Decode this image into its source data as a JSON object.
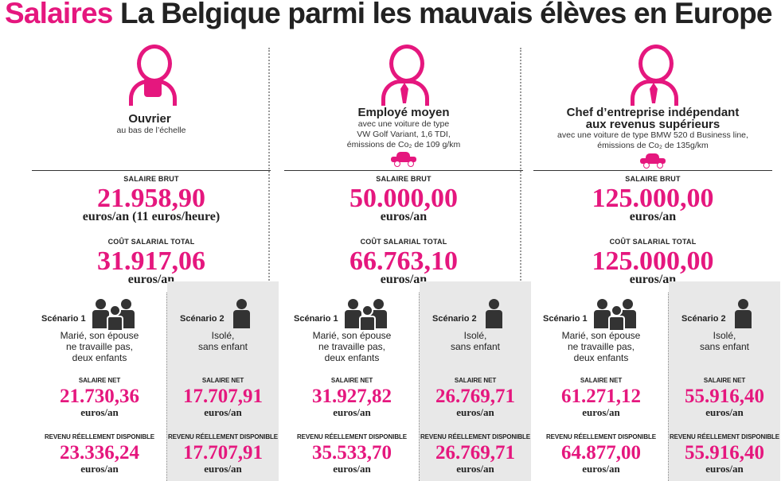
{
  "title": {
    "keyword": "Salaires",
    "text": "La Belgique parmi les mauvais élèves en Europe"
  },
  "colors": {
    "accent": "#e5177e",
    "panel": "#e8e8e8",
    "text": "#222222"
  },
  "labels": {
    "salaire_brut": "SALAIRE BRUT",
    "cout_salarial": "COÛT SALARIAL TOTAL",
    "scenario1": "Scénario 1",
    "scenario2": "Scénario 2",
    "salaire_net": "SALAIRE NET",
    "revenu": "REVENU RÉELLEMENT DISPONIBLE",
    "unit": "euros/an"
  },
  "columns": [
    {
      "role": "Ouvrier",
      "role_line2": "",
      "subtitle": [
        "au bas de l’échelle"
      ],
      "icon": "worker-icon",
      "car": false,
      "brut": "21.958,90",
      "brut_unit": "euros/an (11 euros/heure)",
      "cout": "31.917,06",
      "s1_desc": [
        "Marié, son épouse",
        "ne travaille pas,",
        "deux enfants"
      ],
      "s2_desc": [
        "Isolé,",
        "sans enfant"
      ],
      "s1_net": "21.730,36",
      "s2_net": "17.707,91",
      "s1_revenu": "23.336,24",
      "s2_revenu": "17.707,91"
    },
    {
      "role": "Employé moyen",
      "role_line2": "",
      "subtitle": [
        "avec une voiture de type",
        "VW Golf Variant, 1,6 TDI,",
        "émissions de Co₂ de 109 g/km"
      ],
      "icon": "employee-icon",
      "car": true,
      "brut": "50.000,00",
      "brut_unit": "euros/an",
      "cout": "66.763,10",
      "s1_desc": [
        "Marié, son épouse",
        "ne travaille pas,",
        "deux enfants"
      ],
      "s2_desc": [
        "Isolé,",
        "sans enfant"
      ],
      "s1_net": "31.927,82",
      "s2_net": "26.769,71",
      "s1_revenu": "35.533,70",
      "s2_revenu": "26.769,71"
    },
    {
      "role": "Chef d’entreprise indépendant",
      "role_line2": "aux revenus supérieurs",
      "subtitle": [
        "avec une voiture de type BMW 520 d Business line,",
        "émissions de Co₂ de 135g/km"
      ],
      "icon": "executive-icon",
      "car": true,
      "brut": "125.000,00",
      "brut_unit": "euros/an",
      "cout": "125.000,00",
      "s1_desc": [
        "Marié, son épouse",
        "ne travaille pas,",
        "deux enfants"
      ],
      "s2_desc": [
        "Isolé,",
        "sans enfant"
      ],
      "s1_net": "61.271,12",
      "s2_net": "55.916,40",
      "s1_revenu": "64.877,00",
      "s2_revenu": "55.916,40"
    }
  ]
}
